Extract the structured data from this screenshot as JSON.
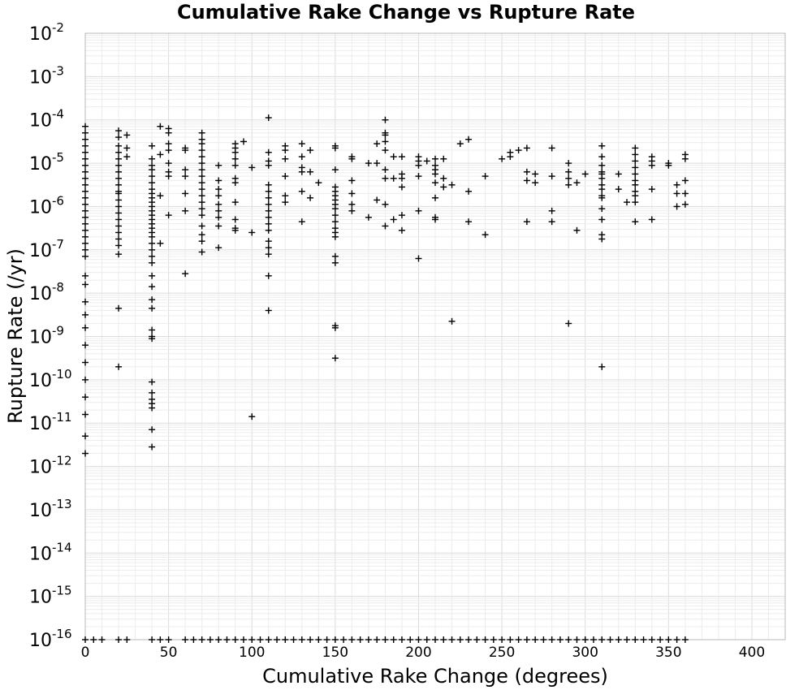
{
  "chart_data": {
    "type": "scatter",
    "title": "Cumulative Rake Change vs Rupture Rate",
    "xlabel": "Cumulative Rake Change (degrees)",
    "ylabel": "Rupture Rate (/yr)",
    "xlim": [
      0,
      420
    ],
    "ylim": [
      1e-16,
      0.01
    ],
    "yscale": "log",
    "grid": true,
    "marker": "plus",
    "marker_color": "#000000",
    "xticks": [
      {
        "value": 0,
        "label": "0"
      },
      {
        "value": 50,
        "label": "50"
      },
      {
        "value": 100,
        "label": "100"
      },
      {
        "value": 150,
        "label": "150"
      },
      {
        "value": 200,
        "label": "200"
      },
      {
        "value": 250,
        "label": "250"
      },
      {
        "value": 300,
        "label": "300"
      },
      {
        "value": 350,
        "label": "350"
      },
      {
        "value": 400,
        "label": "400"
      }
    ],
    "yticks": [
      {
        "exp": -2,
        "base": "10",
        "power": "-2"
      },
      {
        "exp": -3,
        "base": "10",
        "power": "-3"
      },
      {
        "exp": -4,
        "base": "10",
        "power": "-4"
      },
      {
        "exp": -5,
        "base": "10",
        "power": "-5"
      },
      {
        "exp": -6,
        "base": "10",
        "power": "-6"
      },
      {
        "exp": -7,
        "base": "10",
        "power": "-7"
      },
      {
        "exp": -8,
        "base": "10",
        "power": "-8"
      },
      {
        "exp": -9,
        "base": "10",
        "power": "-9"
      },
      {
        "exp": -10,
        "base": "10",
        "power": "-10"
      },
      {
        "exp": -11,
        "base": "10",
        "power": "-11"
      },
      {
        "exp": -12,
        "base": "10",
        "power": "-12"
      },
      {
        "exp": -13,
        "base": "10",
        "power": "-13"
      },
      {
        "exp": -14,
        "base": "10",
        "power": "-14"
      },
      {
        "exp": -15,
        "base": "10",
        "power": "-15"
      },
      {
        "exp": -16,
        "base": "10",
        "power": "-16"
      }
    ],
    "points_log10": [
      [
        0,
        -4.15
      ],
      [
        0,
        -4.3
      ],
      [
        0,
        -4.45
      ],
      [
        0,
        -4.6
      ],
      [
        0,
        -4.75
      ],
      [
        0,
        -4.9
      ],
      [
        0,
        -5.05
      ],
      [
        0,
        -5.2
      ],
      [
        0,
        -5.35
      ],
      [
        0,
        -5.5
      ],
      [
        0,
        -5.65
      ],
      [
        0,
        -5.8
      ],
      [
        0,
        -5.95
      ],
      [
        0,
        -6.1
      ],
      [
        0,
        -6.25
      ],
      [
        0,
        -6.4
      ],
      [
        0,
        -6.55
      ],
      [
        0,
        -6.7
      ],
      [
        0,
        -6.85
      ],
      [
        0,
        -7.0
      ],
      [
        0,
        -7.15
      ],
      [
        0,
        -7.6
      ],
      [
        0,
        -7.8
      ],
      [
        0,
        -8.2
      ],
      [
        0,
        -8.5
      ],
      [
        0,
        -8.8
      ],
      [
        0,
        -9.2
      ],
      [
        0,
        -9.6
      ],
      [
        0,
        -10.0
      ],
      [
        0,
        -10.4
      ],
      [
        0,
        -10.8
      ],
      [
        0,
        -11.3
      ],
      [
        0,
        -11.7
      ],
      [
        20,
        -4.25
      ],
      [
        20,
        -4.4
      ],
      [
        20,
        -4.6
      ],
      [
        20,
        -4.75
      ],
      [
        20,
        -4.9
      ],
      [
        20,
        -5.05
      ],
      [
        20,
        -5.2
      ],
      [
        20,
        -5.35
      ],
      [
        20,
        -5.5
      ],
      [
        20,
        -5.65
      ],
      [
        20,
        -5.7
      ],
      [
        20,
        -5.85
      ],
      [
        20,
        -6.0
      ],
      [
        20,
        -6.15
      ],
      [
        20,
        -6.3
      ],
      [
        20,
        -6.45
      ],
      [
        20,
        -6.6
      ],
      [
        20,
        -6.75
      ],
      [
        20,
        -6.9
      ],
      [
        20,
        -7.1
      ],
      [
        20,
        -8.35
      ],
      [
        20,
        -9.7
      ],
      [
        25,
        -4.35
      ],
      [
        25,
        -4.65
      ],
      [
        25,
        -4.85
      ],
      [
        40,
        -4.6
      ],
      [
        40,
        -4.9
      ],
      [
        40,
        -5.05
      ],
      [
        40,
        -5.15
      ],
      [
        40,
        -5.3
      ],
      [
        40,
        -5.45
      ],
      [
        40,
        -5.6
      ],
      [
        40,
        -5.7
      ],
      [
        40,
        -5.8
      ],
      [
        40,
        -5.9
      ],
      [
        40,
        -6.0
      ],
      [
        40,
        -6.1
      ],
      [
        40,
        -6.2
      ],
      [
        40,
        -6.3
      ],
      [
        40,
        -6.4
      ],
      [
        40,
        -6.5
      ],
      [
        40,
        -6.6
      ],
      [
        40,
        -6.7
      ],
      [
        40,
        -6.85
      ],
      [
        40,
        -7.0
      ],
      [
        40,
        -7.15
      ],
      [
        40,
        -7.3
      ],
      [
        40,
        -7.6
      ],
      [
        40,
        -7.85
      ],
      [
        40,
        -8.15
      ],
      [
        40,
        -8.35
      ],
      [
        40,
        -8.85
      ],
      [
        40,
        -9.0
      ],
      [
        40,
        -9.05
      ],
      [
        40,
        -10.05
      ],
      [
        40,
        -10.3
      ],
      [
        40,
        -10.45
      ],
      [
        40,
        -10.55
      ],
      [
        40,
        -10.65
      ],
      [
        40,
        -11.15
      ],
      [
        40,
        -11.55
      ],
      [
        45,
        -4.15
      ],
      [
        45,
        -4.8
      ],
      [
        45,
        -5.75
      ],
      [
        45,
        -6.85
      ],
      [
        50,
        -4.2
      ],
      [
        50,
        -4.3
      ],
      [
        50,
        -4.55
      ],
      [
        50,
        -4.7
      ],
      [
        50,
        -5.0
      ],
      [
        50,
        -5.2
      ],
      [
        50,
        -5.3
      ],
      [
        50,
        -6.2
      ],
      [
        60,
        -4.65
      ],
      [
        60,
        -4.7
      ],
      [
        60,
        -5.15
      ],
      [
        60,
        -5.3
      ],
      [
        60,
        -5.7
      ],
      [
        60,
        -6.1
      ],
      [
        60,
        -7.55
      ],
      [
        70,
        -4.3
      ],
      [
        70,
        -4.45
      ],
      [
        70,
        -4.55
      ],
      [
        70,
        -4.7
      ],
      [
        70,
        -4.85
      ],
      [
        70,
        -5.0
      ],
      [
        70,
        -5.15
      ],
      [
        70,
        -5.3
      ],
      [
        70,
        -5.45
      ],
      [
        70,
        -5.6
      ],
      [
        70,
        -5.75
      ],
      [
        70,
        -5.9
      ],
      [
        70,
        -6.05
      ],
      [
        70,
        -6.2
      ],
      [
        70,
        -6.45
      ],
      [
        70,
        -6.65
      ],
      [
        70,
        -6.8
      ],
      [
        70,
        -7.05
      ],
      [
        80,
        -5.05
      ],
      [
        80,
        -5.4
      ],
      [
        80,
        -5.6
      ],
      [
        80,
        -5.75
      ],
      [
        80,
        -5.95
      ],
      [
        80,
        -6.1
      ],
      [
        80,
        -6.25
      ],
      [
        80,
        -6.45
      ],
      [
        80,
        -6.95
      ],
      [
        90,
        -4.55
      ],
      [
        90,
        -4.65
      ],
      [
        90,
        -4.75
      ],
      [
        90,
        -4.9
      ],
      [
        90,
        -5.05
      ],
      [
        90,
        -5.35
      ],
      [
        90,
        -5.45
      ],
      [
        90,
        -5.9
      ],
      [
        90,
        -6.3
      ],
      [
        90,
        -6.5
      ],
      [
        90,
        -6.55
      ],
      [
        95,
        -4.5
      ],
      [
        100,
        -5.1
      ],
      [
        100,
        -6.6
      ],
      [
        100,
        -10.85
      ],
      [
        110,
        -3.95
      ],
      [
        110,
        -4.75
      ],
      [
        110,
        -4.95
      ],
      [
        110,
        -5.05
      ],
      [
        110,
        -5.5
      ],
      [
        110,
        -5.65
      ],
      [
        110,
        -5.8
      ],
      [
        110,
        -5.95
      ],
      [
        110,
        -6.1
      ],
      [
        110,
        -6.25
      ],
      [
        110,
        -6.4
      ],
      [
        110,
        -6.55
      ],
      [
        110,
        -6.8
      ],
      [
        110,
        -6.95
      ],
      [
        110,
        -7.1
      ],
      [
        110,
        -7.6
      ],
      [
        110,
        -8.4
      ],
      [
        120,
        -4.6
      ],
      [
        120,
        -4.7
      ],
      [
        120,
        -4.9
      ],
      [
        120,
        -5.3
      ],
      [
        120,
        -5.75
      ],
      [
        120,
        -5.9
      ],
      [
        130,
        -4.55
      ],
      [
        130,
        -4.85
      ],
      [
        130,
        -5.1
      ],
      [
        130,
        -5.2
      ],
      [
        130,
        -5.65
      ],
      [
        130,
        -6.35
      ],
      [
        135,
        -4.7
      ],
      [
        135,
        -5.2
      ],
      [
        135,
        -5.8
      ],
      [
        140,
        -5.45
      ],
      [
        150,
        -4.6
      ],
      [
        150,
        -4.65
      ],
      [
        150,
        -5.15
      ],
      [
        150,
        -5.55
      ],
      [
        150,
        -5.65
      ],
      [
        150,
        -5.75
      ],
      [
        150,
        -5.85
      ],
      [
        150,
        -5.95
      ],
      [
        150,
        -6.05
      ],
      [
        150,
        -6.2
      ],
      [
        150,
        -6.35
      ],
      [
        150,
        -6.5
      ],
      [
        150,
        -6.6
      ],
      [
        150,
        -6.7
      ],
      [
        150,
        -7.15
      ],
      [
        150,
        -7.3
      ],
      [
        150,
        -8.75
      ],
      [
        150,
        -8.8
      ],
      [
        150,
        -9.5
      ],
      [
        160,
        -4.85
      ],
      [
        160,
        -4.9
      ],
      [
        160,
        -5.4
      ],
      [
        160,
        -5.7
      ],
      [
        160,
        -5.95
      ],
      [
        160,
        -6.1
      ],
      [
        170,
        -5.0
      ],
      [
        170,
        -6.25
      ],
      [
        175,
        -4.55
      ],
      [
        175,
        -5.0
      ],
      [
        175,
        -5.85
      ],
      [
        180,
        -4.0
      ],
      [
        180,
        -4.3
      ],
      [
        180,
        -4.35
      ],
      [
        180,
        -4.5
      ],
      [
        180,
        -4.7
      ],
      [
        180,
        -5.15
      ],
      [
        180,
        -5.35
      ],
      [
        180,
        -5.95
      ],
      [
        180,
        -6.45
      ],
      [
        185,
        -4.85
      ],
      [
        185,
        -5.35
      ],
      [
        185,
        -6.3
      ],
      [
        190,
        -4.85
      ],
      [
        190,
        -5.25
      ],
      [
        190,
        -5.35
      ],
      [
        190,
        -5.55
      ],
      [
        190,
        -6.2
      ],
      [
        190,
        -6.55
      ],
      [
        200,
        -4.85
      ],
      [
        200,
        -4.95
      ],
      [
        200,
        -5.05
      ],
      [
        200,
        -5.3
      ],
      [
        200,
        -6.1
      ],
      [
        200,
        -7.2
      ],
      [
        205,
        -4.95
      ],
      [
        210,
        -4.9
      ],
      [
        210,
        -5.05
      ],
      [
        210,
        -5.15
      ],
      [
        210,
        -5.25
      ],
      [
        210,
        -5.45
      ],
      [
        210,
        -5.8
      ],
      [
        210,
        -6.25
      ],
      [
        210,
        -6.3
      ],
      [
        215,
        -4.9
      ],
      [
        215,
        -5.35
      ],
      [
        215,
        -5.55
      ],
      [
        220,
        -5.5
      ],
      [
        220,
        -8.65
      ],
      [
        225,
        -4.55
      ],
      [
        230,
        -4.45
      ],
      [
        230,
        -5.65
      ],
      [
        230,
        -6.35
      ],
      [
        240,
        -5.3
      ],
      [
        240,
        -6.65
      ],
      [
        250,
        -4.9
      ],
      [
        255,
        -4.75
      ],
      [
        255,
        -4.85
      ],
      [
        260,
        -4.7
      ],
      [
        265,
        -4.65
      ],
      [
        265,
        -5.2
      ],
      [
        265,
        -5.4
      ],
      [
        265,
        -6.35
      ],
      [
        270,
        -5.25
      ],
      [
        270,
        -5.45
      ],
      [
        280,
        -4.65
      ],
      [
        280,
        -5.3
      ],
      [
        280,
        -6.1
      ],
      [
        280,
        -6.35
      ],
      [
        290,
        -5.0
      ],
      [
        290,
        -5.2
      ],
      [
        290,
        -5.35
      ],
      [
        290,
        -5.5
      ],
      [
        290,
        -8.7
      ],
      [
        295,
        -5.45
      ],
      [
        295,
        -6.55
      ],
      [
        300,
        -5.25
      ],
      [
        310,
        -4.6
      ],
      [
        310,
        -4.85
      ],
      [
        310,
        -5.05
      ],
      [
        310,
        -5.2
      ],
      [
        310,
        -5.25
      ],
      [
        310,
        -5.35
      ],
      [
        310,
        -5.5
      ],
      [
        310,
        -5.6
      ],
      [
        310,
        -5.75
      ],
      [
        310,
        -5.8
      ],
      [
        310,
        -6.05
      ],
      [
        310,
        -6.3
      ],
      [
        310,
        -6.65
      ],
      [
        310,
        -6.75
      ],
      [
        310,
        -9.7
      ],
      [
        320,
        -5.25
      ],
      [
        320,
        -5.6
      ],
      [
        325,
        -5.9
      ],
      [
        330,
        -4.65
      ],
      [
        330,
        -4.8
      ],
      [
        330,
        -4.95
      ],
      [
        330,
        -5.1
      ],
      [
        330,
        -5.25
      ],
      [
        330,
        -5.4
      ],
      [
        330,
        -5.5
      ],
      [
        330,
        -5.65
      ],
      [
        330,
        -5.75
      ],
      [
        330,
        -5.9
      ],
      [
        330,
        -6.35
      ],
      [
        340,
        -4.85
      ],
      [
        340,
        -4.95
      ],
      [
        340,
        -5.05
      ],
      [
        340,
        -5.6
      ],
      [
        340,
        -6.3
      ],
      [
        350,
        -5.0
      ],
      [
        350,
        -5.05
      ],
      [
        355,
        -5.5
      ],
      [
        355,
        -5.7
      ],
      [
        355,
        -6.0
      ],
      [
        360,
        -4.8
      ],
      [
        360,
        -4.9
      ],
      [
        360,
        -5.4
      ],
      [
        360,
        -5.7
      ],
      [
        360,
        -5.95
      ]
    ],
    "zero_rate_row": {
      "log10_rate": -16,
      "x": [
        0,
        5,
        10,
        20,
        25,
        40,
        45,
        50,
        60,
        65,
        70,
        75,
        80,
        85,
        90,
        95,
        100,
        105,
        110,
        115,
        120,
        125,
        130,
        135,
        140,
        145,
        150,
        155,
        160,
        165,
        170,
        175,
        180,
        185,
        190,
        195,
        200,
        205,
        210,
        215,
        220,
        225,
        230,
        235,
        240,
        245,
        250,
        255,
        260,
        265,
        270,
        275,
        280,
        285,
        290,
        295,
        300,
        305,
        310,
        315,
        320,
        325,
        330,
        335,
        340,
        345,
        350,
        355,
        360
      ]
    }
  }
}
